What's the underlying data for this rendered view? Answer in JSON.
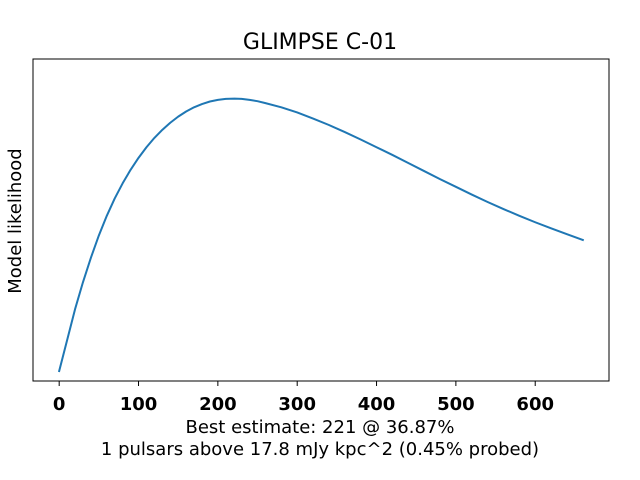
{
  "chart_data": {
    "type": "line",
    "title": "GLIMPSE C-01",
    "ylabel": "Model likelihood",
    "xlabel_lines": [
      "Best estimate: 221 @ 36.87%",
      "1 pulsars above 17.8 mJy kpc^2 (0.45% probed)"
    ],
    "xlim": [
      -33,
      693
    ],
    "ylim": [
      0,
      1
    ],
    "x_ticks": [
      0,
      100,
      200,
      300,
      400,
      500,
      600
    ],
    "x_tick_labels": [
      "0",
      "100",
      "200",
      "300",
      "400",
      "500",
      "600"
    ],
    "y_ticks_shown": false,
    "grid": false,
    "legend": "none",
    "series": [
      {
        "color": "#1f77b4",
        "x": [
          0,
          10,
          20,
          30,
          40,
          50,
          60,
          70,
          80,
          90,
          100,
          110,
          120,
          130,
          140,
          150,
          160,
          170,
          180,
          190,
          200,
          210,
          221,
          230,
          240,
          250,
          260,
          280,
          300,
          320,
          340,
          360,
          380,
          400,
          420,
          440,
          460,
          480,
          500,
          520,
          540,
          560,
          580,
          600,
          620,
          640,
          660
        ],
        "y": [
          0.031,
          0.127,
          0.223,
          0.307,
          0.383,
          0.452,
          0.513,
          0.567,
          0.614,
          0.656,
          0.693,
          0.726,
          0.755,
          0.78,
          0.802,
          0.821,
          0.837,
          0.85,
          0.86,
          0.868,
          0.873,
          0.876,
          0.877,
          0.876,
          0.873,
          0.869,
          0.863,
          0.85,
          0.834,
          0.815,
          0.795,
          0.773,
          0.75,
          0.726,
          0.702,
          0.677,
          0.652,
          0.627,
          0.603,
          0.579,
          0.556,
          0.534,
          0.513,
          0.493,
          0.474,
          0.456,
          0.438
        ]
      }
    ]
  }
}
